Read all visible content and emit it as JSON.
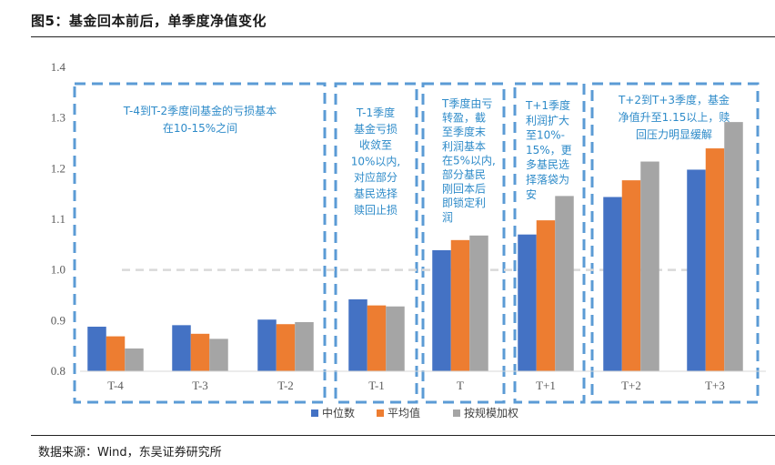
{
  "title": "图5：基金回本前后，单季度净值变化",
  "source": "数据来源：Wind，东吴证券研究所",
  "chart_data": {
    "type": "bar",
    "categories": [
      "T-4",
      "T-3",
      "T-2",
      "T-1",
      "T",
      "T+1",
      "T+2",
      "T+3"
    ],
    "series": [
      {
        "name": "中位数",
        "color": "#4472c4",
        "values": [
          0.888,
          0.891,
          0.902,
          0.942,
          1.039,
          1.07,
          1.144,
          1.198
        ]
      },
      {
        "name": "平均值",
        "color": "#ed7d31",
        "values": [
          0.869,
          0.874,
          0.893,
          0.93,
          1.059,
          1.098,
          1.177,
          1.24
        ]
      },
      {
        "name": "按规模加权",
        "color": "#a5a5a5",
        "values": [
          0.845,
          0.864,
          0.897,
          0.928,
          1.068,
          1.146,
          1.214,
          1.292
        ]
      }
    ],
    "ylim": [
      0.8,
      1.4
    ],
    "yticks": [
      "0.8",
      "0.9",
      "1.0",
      "1.1",
      "1.2",
      "1.3",
      "1.4"
    ],
    "reference_line": 1.0,
    "legend_position": "bottom-center",
    "annotations": [
      {
        "group": "T-4 ~ T-2",
        "lines": [
          "T-4到T-2季度间基金的亏损基本",
          "在10-15%之间"
        ]
      },
      {
        "group": "T-1",
        "lines": [
          "T-1季度",
          "基金亏损",
          "收敛至",
          "10%以内,",
          "对应部分",
          "基民选择",
          "赎回止损"
        ]
      },
      {
        "group": "T",
        "lines": [
          "T季度由亏",
          "转盈，截",
          "至季度末",
          "利润基本",
          "在5%以内,",
          "部分基民",
          "刚回本后",
          "即锁定利",
          "润"
        ]
      },
      {
        "group": "T+1",
        "lines": [
          "T+1季度",
          "利润扩大",
          "至10%-",
          "15%，更",
          "多基民选",
          "择落袋为",
          "安"
        ]
      },
      {
        "group": "T+2 ~ T+3",
        "lines": [
          "T+2到T+3季度，基金",
          "净值升至1.15以上，赎",
          "回压力明显缓解"
        ]
      }
    ]
  }
}
